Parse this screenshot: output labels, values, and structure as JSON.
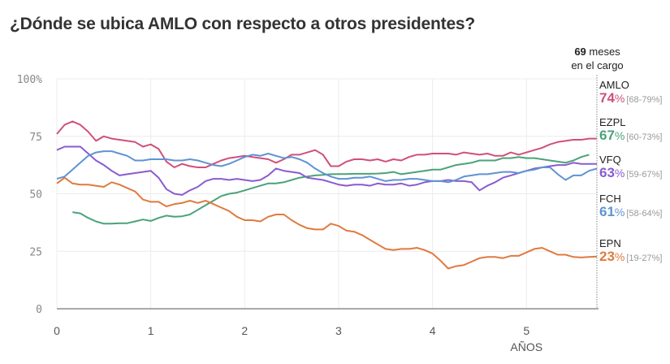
{
  "title": "¿Dónde se ubica AMLO con respecto a otros presidentes?",
  "months_note": {
    "number": "69",
    "line1_rest": " meses",
    "line2": "en el cargo"
  },
  "chart_data": {
    "type": "line",
    "title": "¿Dónde se ubica AMLO con respecto a otros presidentes?",
    "xlabel": "AÑOS",
    "ylabel": "",
    "x_unit": "months",
    "xlim": [
      0,
      69
    ],
    "ylim": [
      0,
      100
    ],
    "x_ticks": [
      0,
      1,
      2,
      3,
      4,
      5
    ],
    "x_tick_labels": [
      "0",
      "1",
      "2",
      "3",
      "4",
      "5"
    ],
    "y_ticks": [
      0,
      25,
      50,
      75,
      100
    ],
    "y_tick_labels": [
      "0",
      "25",
      "50",
      "75",
      "100%"
    ],
    "grid": true,
    "current_marker_month": 69,
    "legend_placement": "right",
    "series": [
      {
        "name": "AMLO",
        "color": "#d0507a",
        "current": "74",
        "range": "[68-79%]",
        "start_month": 0,
        "values": [
          76,
          80,
          81.5,
          80,
          77,
          73,
          75,
          74,
          73.5,
          73,
          72.5,
          70.5,
          71.5,
          69.5,
          64,
          61.5,
          63,
          62,
          61.5,
          61.5,
          63,
          64.5,
          65.5,
          66,
          66.5,
          66,
          65.5,
          65,
          63.5,
          65,
          67,
          67,
          68,
          69,
          67,
          62,
          62,
          64,
          65,
          65,
          64.5,
          65,
          64,
          65,
          64.5,
          66,
          67,
          67,
          67.5,
          67.5,
          67.5,
          67,
          68,
          67.5,
          67,
          67.5,
          66.5,
          66.5,
          68,
          67,
          68,
          69,
          70,
          71.5,
          72.5,
          73,
          73.5,
          73.5,
          74,
          74
        ]
      },
      {
        "name": "EZPL",
        "color": "#4aa27a",
        "current": "67",
        "range": "[60-73%]",
        "start_month": 2,
        "values": [
          42,
          41.5,
          39.5,
          38,
          37,
          37,
          37.2,
          37.2,
          38,
          38.8,
          38.2,
          39.5,
          40.5,
          40,
          40.2,
          41,
          43,
          45,
          47,
          49,
          50,
          50.5,
          51.5,
          52.5,
          53.5,
          54.5,
          54.5,
          55,
          56,
          57,
          57.5,
          58,
          58.2,
          58.5,
          58.6,
          58.6,
          58.7,
          58.7,
          58.7,
          58.8,
          59,
          59.5,
          58.5,
          59,
          59.5,
          60,
          60.5,
          60.5,
          61.5,
          62.5,
          63,
          63.5,
          64.5,
          64.5,
          64.5,
          65.5,
          65.5,
          66,
          65.5,
          65.5,
          65,
          64.5,
          64,
          63.5,
          64.5,
          66,
          67
        ]
      },
      {
        "name": "VFQ",
        "color": "#8a5bd0",
        "current": "63",
        "range": "[59-67%]",
        "start_month": 0,
        "values": [
          69,
          70.5,
          70.5,
          70.5,
          67.5,
          64.5,
          62.5,
          60,
          58,
          58.5,
          59,
          59.5,
          60,
          57,
          52,
          50,
          49.5,
          51.5,
          53,
          55.5,
          56.5,
          56.5,
          56,
          56.5,
          56,
          55.5,
          56,
          58,
          61,
          60,
          59.5,
          59,
          57,
          56.5,
          56,
          55,
          54,
          53.5,
          54,
          54,
          53.5,
          54.5,
          54,
          54,
          54.5,
          53.5,
          54,
          55,
          55.5,
          55.5,
          56,
          55.5,
          55.5,
          55,
          51.5,
          53.5,
          55,
          57,
          58,
          59,
          60,
          61,
          61.5,
          62,
          62.5,
          62.5,
          63.5,
          63,
          63,
          63
        ]
      },
      {
        "name": "FCH",
        "color": "#5f93d3",
        "current": "61",
        "range": "[58-64%]",
        "start_month": 0,
        "values": [
          56.5,
          57.5,
          60.5,
          63.5,
          66.5,
          68,
          68.5,
          68.5,
          67.5,
          66.5,
          64.5,
          64.5,
          65,
          65,
          65,
          64.5,
          64.5,
          65,
          64.5,
          63.5,
          62.5,
          62,
          63,
          64.5,
          66,
          67,
          66.5,
          67.5,
          66.5,
          65.5,
          66,
          65,
          63.5,
          61,
          59,
          57.5,
          56.5,
          56.5,
          57,
          57,
          57.5,
          56.5,
          55.5,
          56,
          56,
          56.5,
          56.5,
          56,
          55.5,
          55.5,
          55,
          56,
          57.5,
          58,
          58.5,
          58.5,
          59,
          59.5,
          59.5,
          59,
          60,
          60.5,
          61.5,
          61.5,
          58.5,
          56,
          58,
          58,
          60,
          61
        ]
      },
      {
        "name": "EPN",
        "color": "#e07a3f",
        "current": "23",
        "range": "[19-27%]",
        "start_month": 0,
        "values": [
          54.5,
          57,
          54.5,
          54,
          54,
          53.5,
          53,
          55,
          54,
          52.5,
          51,
          47.5,
          46.5,
          46.5,
          44.5,
          45.5,
          46,
          47,
          46,
          47,
          45.5,
          44,
          42.5,
          40,
          38.5,
          38.5,
          38,
          40,
          41,
          41,
          38.5,
          36.5,
          35,
          34.5,
          34.5,
          37,
          36,
          34,
          33.5,
          32,
          30,
          28,
          26,
          25.5,
          26,
          26,
          26.5,
          25.5,
          24,
          21,
          17.5,
          18.5,
          19,
          20.5,
          22,
          22.5,
          22.5,
          22,
          23,
          23,
          24.5,
          26,
          26.5,
          25,
          23.5,
          23.5,
          22.5,
          22.3,
          22.5,
          22.7
        ]
      }
    ]
  },
  "legend": [
    {
      "name": "AMLO",
      "value": "74",
      "pct": "%",
      "range": "[68-79%]",
      "color": "#d0507a"
    },
    {
      "name": "EZPL",
      "value": "67",
      "pct": "%",
      "range": "[60-73%]",
      "color": "#4aa27a"
    },
    {
      "name": "VFQ",
      "value": "63",
      "pct": "%",
      "range": "[59-67%]",
      "color": "#8a5bd0"
    },
    {
      "name": "FCH",
      "value": "61",
      "pct": "%",
      "range": "[58-64%]",
      "color": "#5f93d3"
    },
    {
      "name": "EPN",
      "value": "23",
      "pct": "%",
      "range": "[19-27%]",
      "color": "#e07a3f"
    }
  ]
}
